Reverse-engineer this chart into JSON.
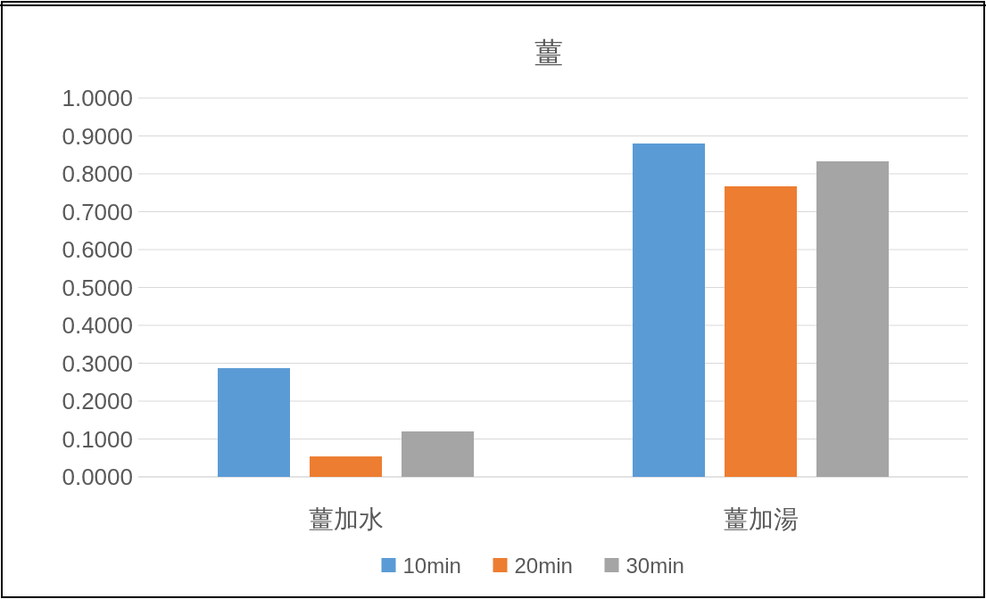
{
  "chart_data": {
    "type": "bar",
    "title": "薑",
    "categories": [
      "薑加水",
      "薑加湯"
    ],
    "series": [
      {
        "name": "10min",
        "color": "#5b9bd5",
        "values": [
          0.287,
          0.88
        ]
      },
      {
        "name": "20min",
        "color": "#ed7d31",
        "values": [
          0.054,
          0.767
        ]
      },
      {
        "name": "30min",
        "color": "#a5a5a5",
        "values": [
          0.12,
          0.833
        ]
      }
    ],
    "ylim": [
      0,
      1
    ],
    "yticks": [
      {
        "value": 0,
        "label": "0.0000"
      },
      {
        "value": 0.1,
        "label": "0.1000"
      },
      {
        "value": 0.2,
        "label": "0.2000"
      },
      {
        "value": 0.3,
        "label": "0.3000"
      },
      {
        "value": 0.4,
        "label": "0.4000"
      },
      {
        "value": 0.5,
        "label": "0.5000"
      },
      {
        "value": 0.6,
        "label": "0.6000"
      },
      {
        "value": 0.7,
        "label": "0.7000"
      },
      {
        "value": 0.8,
        "label": "0.8000"
      },
      {
        "value": 0.9,
        "label": "0.9000"
      },
      {
        "value": 1,
        "label": "1.0000"
      }
    ],
    "grid": "y",
    "legend": "bottom"
  }
}
